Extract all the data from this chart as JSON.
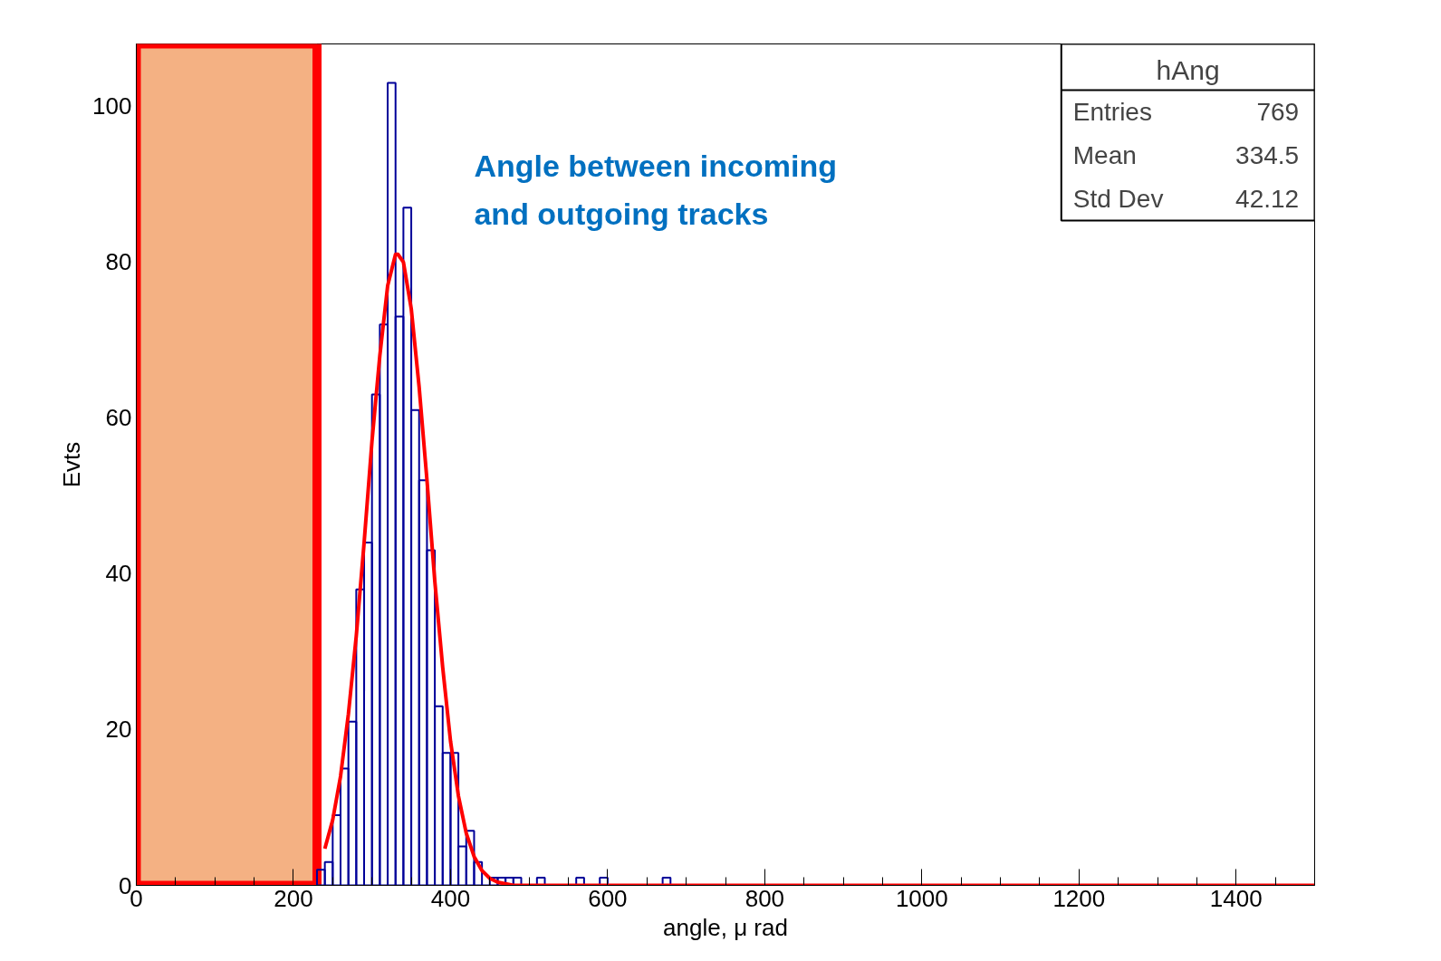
{
  "chart_data": {
    "type": "histogram",
    "title": "hAng",
    "xlabel": "angle, μ rad",
    "ylabel": "Evts",
    "bins": [
      230,
      240,
      250,
      260,
      270,
      280,
      290,
      300,
      310,
      320,
      330,
      340,
      350,
      360,
      370,
      380,
      390,
      400,
      410,
      420,
      430,
      440,
      450,
      460,
      470,
      480,
      490,
      500,
      510,
      520,
      530,
      540,
      550,
      560,
      570,
      580,
      590,
      600,
      610,
      620,
      630,
      640,
      650,
      660,
      670,
      680
    ],
    "values": [
      2,
      3,
      9,
      15,
      21,
      38,
      44,
      63,
      72,
      103,
      73,
      87,
      61,
      52,
      43,
      23,
      17,
      17,
      5,
      7,
      3,
      0,
      1,
      1,
      1,
      1,
      0,
      0,
      1,
      0,
      0,
      0,
      0,
      1,
      0,
      0,
      1,
      0,
      0,
      0,
      0,
      0,
      0,
      0,
      1
    ],
    "color": "#000099",
    "series": [
      {
        "type": "line",
        "color": "#ff0000",
        "x": [
          240,
          250,
          260,
          270,
          280,
          290,
          300,
          310,
          320,
          330,
          333,
          340,
          350,
          360,
          370,
          380,
          390,
          400,
          410,
          420,
          430,
          440,
          450,
          460,
          480,
          1500
        ],
        "values": [
          4.7,
          8.4,
          14,
          22,
          32,
          44,
          57,
          68,
          77,
          81,
          81,
          80,
          74,
          64,
          52,
          39,
          28,
          18.5,
          11.5,
          6.7,
          3.7,
          1.9,
          0.9,
          0.4,
          0,
          0
        ]
      }
    ],
    "bands": [
      {
        "axis": "x",
        "from": 0,
        "to": 230,
        "color": "#f4b183"
      }
    ],
    "annotations": [
      "Angle between incoming\nand outgoing tracks",
      "Entries",
      "769",
      "Mean",
      "334.5",
      "Std Dev",
      "42.12"
    ],
    "xlim": [
      0,
      1500
    ],
    "xticks": [
      0,
      200,
      400,
      600,
      800,
      1000,
      1200,
      1400
    ],
    "ylim": [
      0,
      108
    ],
    "yticks": [
      0,
      20,
      40,
      60,
      80,
      100
    ],
    "grid": false
  }
}
